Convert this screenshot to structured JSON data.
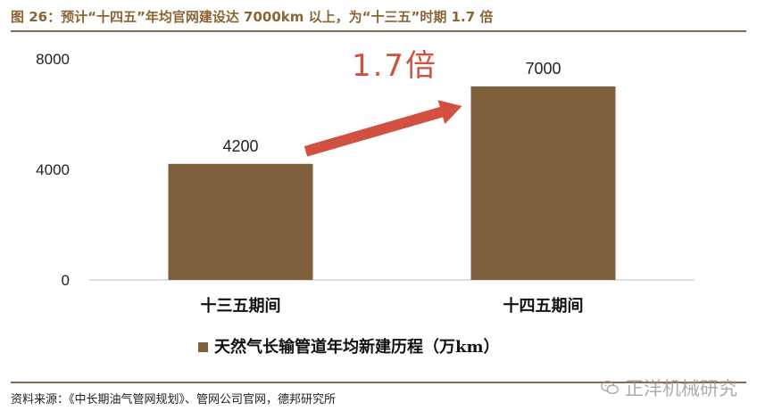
{
  "figure": {
    "title": "图 26：预计“十四五”年均官网建设达 7000km 以上，为“十三五”时期 1.7 倍",
    "source": "资料来源：《中长期油气管网规划》、管网公司官网，德邦研究所",
    "watermark": "正洋机械研究"
  },
  "chart_data": {
    "type": "bar",
    "categories": [
      "十三五期间",
      "十四五期间"
    ],
    "series": [
      {
        "name": "天然气长输管道年均新建历程（万km）",
        "values": [
          4200,
          7000
        ],
        "color": "#7f5f3c"
      }
    ],
    "data_labels": [
      "4200",
      "7000"
    ],
    "y_ticks": [
      0,
      4000,
      8000
    ],
    "y_tick_labels": [
      "0",
      "4000",
      "8000"
    ],
    "ylim": [
      0,
      8000
    ],
    "annotation": {
      "text": "1.7倍",
      "color": "#d2503f"
    },
    "legend_position": "bottom",
    "grid": false
  }
}
